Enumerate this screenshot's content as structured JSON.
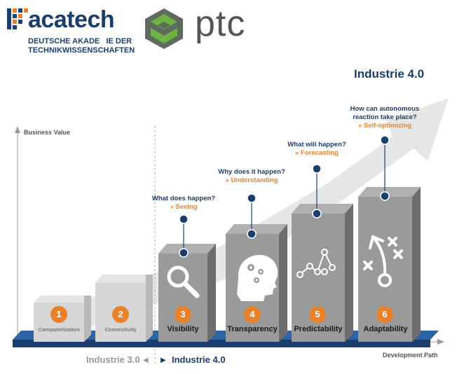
{
  "logos": {
    "acatech_name": "acatech",
    "acatech_subtitle_line1": "DEUTSCHE AKADE   IE DER",
    "acatech_subtitle_line2": "TECHNIKWISSENSCHAFTEN",
    "ptc_name": "ptc"
  },
  "header": {
    "title": "Industrie 4.0"
  },
  "axes": {
    "y_label": "Business Value",
    "x_label": "Development Path"
  },
  "eras": {
    "left": "Industrie 3.0",
    "right": "Industrie 4.0"
  },
  "stages": [
    {
      "number": "1",
      "label": "Computerization"
    },
    {
      "number": "2",
      "label": "Connectivity"
    },
    {
      "number": "3",
      "label": "Visibility",
      "question": "What does happen?",
      "answer": "» Seeing"
    },
    {
      "number": "4",
      "label": "Transparency",
      "question": "Why does it happen?",
      "answer": "» Understanding"
    },
    {
      "number": "5",
      "label": "Predictability",
      "question": "What will happen?",
      "answer": "» Forecasting"
    },
    {
      "number": "6",
      "label": "Adaptability",
      "question_line1": "How can autonomous",
      "question_line2": "reaction take place?",
      "answer": "» Self-optimizing"
    }
  ],
  "colors": {
    "navy": "#1a3f6e",
    "orange": "#e8822a",
    "platform_blue": "#1f4f8a",
    "grey_light": "#d6d6d6",
    "grey_mid": "#9a9a9a",
    "grey_dark": "#6d6d6d"
  },
  "icons": [
    "magnifier-icon",
    "head-gears-icon",
    "trend-graph-icon",
    "strategy-play-icon"
  ]
}
